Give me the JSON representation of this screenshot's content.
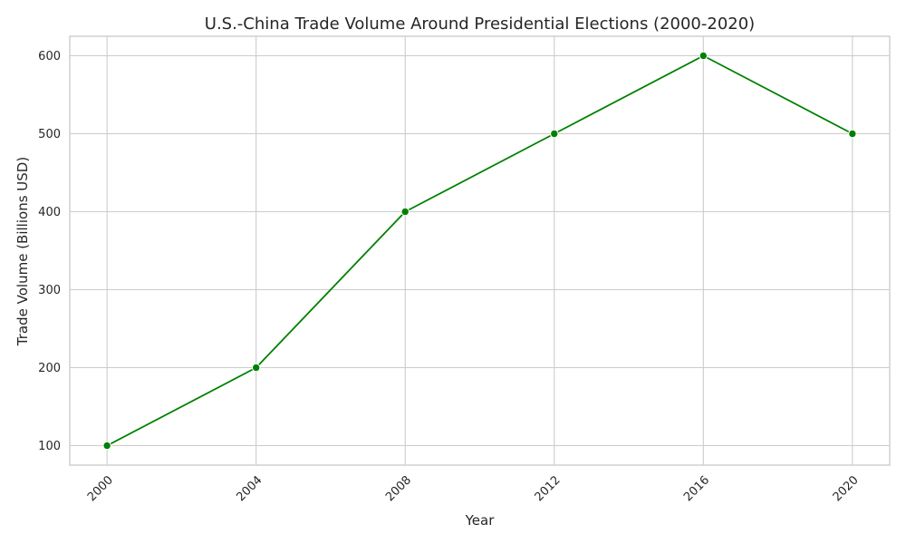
{
  "chart_data": {
    "type": "line",
    "title": "U.S.-China Trade Volume Around Presidential Elections (2000-2020)",
    "xlabel": "Year",
    "ylabel": "Trade Volume (Billions USD)",
    "x": [
      2000,
      2004,
      2008,
      2012,
      2016,
      2020
    ],
    "x_tick_labels": [
      "2000",
      "2004",
      "2008",
      "2012",
      "2016",
      "2020"
    ],
    "y_ticks": [
      100,
      200,
      300,
      400,
      500,
      600
    ],
    "y_tick_labels": [
      "100",
      "200",
      "300",
      "400",
      "500",
      "600"
    ],
    "xlim": [
      1999,
      2021
    ],
    "ylim": [
      75,
      625
    ],
    "series": [
      {
        "name": "Trade Volume",
        "values": [
          100,
          200,
          400,
          500,
          600,
          500
        ],
        "color": "#008000"
      }
    ],
    "grid": true,
    "marker": "circle",
    "x_tick_rotation_deg": 45
  }
}
